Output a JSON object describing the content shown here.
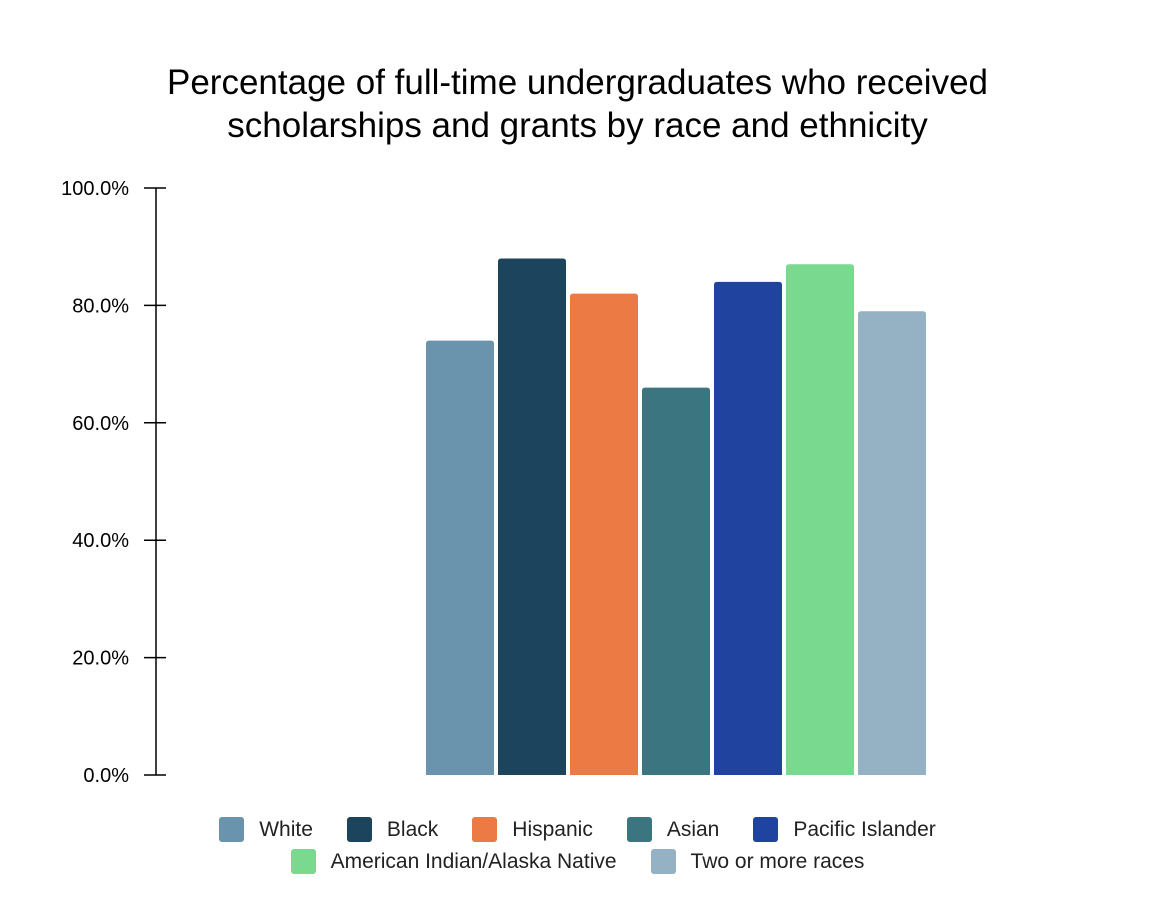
{
  "chart_data": {
    "type": "bar",
    "title_lines": [
      "Percentage of full-time undergraduates who received",
      "scholarships and grants by race and ethnicity"
    ],
    "categories": [
      "White",
      "Black",
      "Hispanic",
      "Asian",
      "Pacific Islander",
      "American Indian/Alaska Native",
      "Two or more races"
    ],
    "values": [
      74,
      88,
      82,
      66,
      84,
      87,
      79
    ],
    "colors": [
      "#6a93ad",
      "#1c445c",
      "#ec7a45",
      "#3b7680",
      "#2043a0",
      "#79d98f",
      "#95b1c4"
    ],
    "y_ticks": [
      {
        "value": 0,
        "label": "0.0%"
      },
      {
        "value": 20,
        "label": "20.0%"
      },
      {
        "value": 40,
        "label": "40.0%"
      },
      {
        "value": 60,
        "label": "60.0%"
      },
      {
        "value": 80,
        "label": "80.0%"
      },
      {
        "value": 100,
        "label": "100.0%"
      }
    ],
    "ylim": [
      0,
      100
    ],
    "grid": false,
    "legend_position": "bottom",
    "legend_rows": [
      [
        0,
        1,
        2,
        3,
        4
      ],
      [
        5,
        6
      ]
    ]
  }
}
